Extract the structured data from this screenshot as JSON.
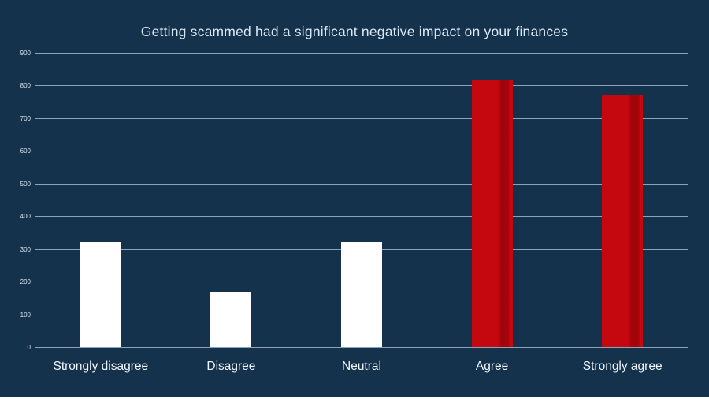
{
  "colors": {
    "background": "#14324c",
    "gridline": "#8ba4ba",
    "bar_white": "#ffffff",
    "bar_red": "#c5070f",
    "bar_red_shade": "#a2040b",
    "title_text": "#dbe7f3",
    "tick_text": "#d8e2ec",
    "category_text": "#f0f5fa"
  },
  "chart_data": {
    "type": "bar",
    "title": "Getting scammed had a significant negative impact on your finances",
    "categories": [
      "Strongly disagree",
      "Disagree",
      "Neutral",
      "Agree",
      "Strongly agree"
    ],
    "values": [
      320,
      168,
      320,
      815,
      770
    ],
    "bar_colors": [
      "#ffffff",
      "#ffffff",
      "#ffffff",
      "#c5070f",
      "#c5070f"
    ],
    "xlabel": "",
    "ylabel": "",
    "ylim": [
      0,
      900
    ],
    "ytick_interval": 100,
    "ytick_labels": [
      "0",
      "100",
      "200",
      "300",
      "400",
      "500",
      "600",
      "700",
      "800",
      "900"
    ],
    "grid": true,
    "legend": false
  }
}
